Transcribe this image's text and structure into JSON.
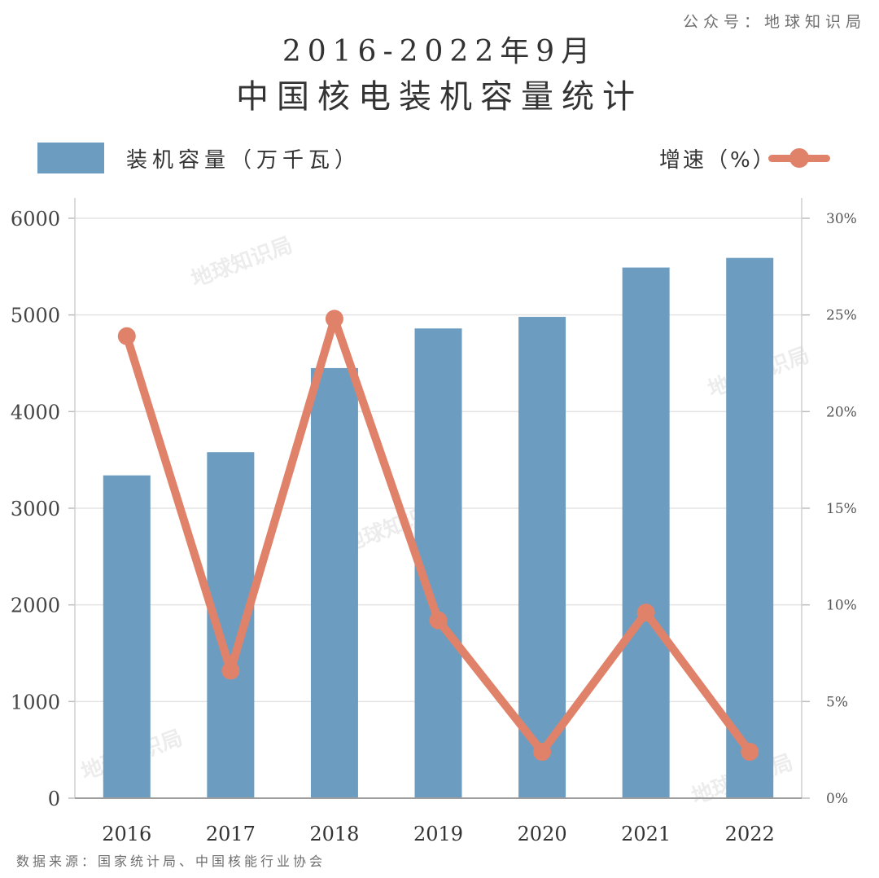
{
  "credit": "公众号：地球知识局",
  "source": "数据来源：国家统计局、中国核能行业协会",
  "watermark": "地球知识局",
  "chart_data": {
    "type": "bar",
    "title": "2016-2022年9月",
    "subtitle": "中国核电装机容量统计",
    "categories": [
      "2016",
      "2017",
      "2018",
      "2019",
      "2020",
      "2021",
      "2022"
    ],
    "series": [
      {
        "name": "装机容量（万千瓦）",
        "type": "bar",
        "axis": "left",
        "color": "#6c9dc0",
        "values": [
          3340,
          3580,
          4450,
          4860,
          4980,
          5490,
          5590
        ]
      },
      {
        "name": "增速（%）",
        "type": "line",
        "axis": "right",
        "color": "#e0826a",
        "values": [
          23.9,
          6.6,
          24.8,
          9.2,
          2.4,
          9.6,
          2.4
        ]
      }
    ],
    "y_left": {
      "min": 0,
      "max": 6000,
      "ticks": [
        0,
        1000,
        2000,
        3000,
        4000,
        5000,
        6000
      ]
    },
    "y_right": {
      "min": 0,
      "max": 30,
      "ticks": [
        "0%",
        "5%",
        "10%",
        "15%",
        "20%",
        "25%",
        "30%"
      ]
    },
    "grid": true,
    "legend_position": "top"
  }
}
